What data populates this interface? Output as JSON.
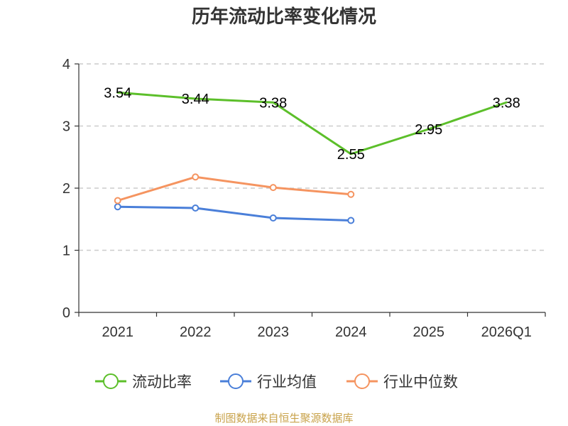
{
  "chart_data": {
    "type": "line",
    "title": "历年流动比率变化情况",
    "categories": [
      "2021",
      "2022",
      "2023",
      "2024",
      "2025",
      "2026Q1"
    ],
    "y_ticks": [
      "0",
      "1",
      "2",
      "3",
      "4"
    ],
    "ylim": [
      0,
      4
    ],
    "grid": "horizontal dashed",
    "legend_position": "bottom",
    "series": [
      {
        "name": "流动比率",
        "color": "#5cbf2a",
        "values": [
          3.54,
          3.44,
          3.38,
          2.55,
          2.95,
          3.38
        ],
        "labels": [
          "3.54",
          "3.44",
          "3.38",
          "2.55",
          "2.95",
          "3.38"
        ],
        "show_labels": true,
        "show_markers": false
      },
      {
        "name": "行业均值",
        "color": "#4a7fd9",
        "values": [
          1.7,
          1.68,
          1.52,
          1.48,
          null,
          null
        ],
        "show_labels": false,
        "show_markers": true
      },
      {
        "name": "行业中位数",
        "color": "#f59460",
        "values": [
          1.8,
          2.18,
          2.01,
          1.9,
          null,
          null
        ],
        "show_labels": false,
        "show_markers": true
      }
    ]
  },
  "footer": {
    "source": "制图数据来自恒生聚源数据库"
  }
}
